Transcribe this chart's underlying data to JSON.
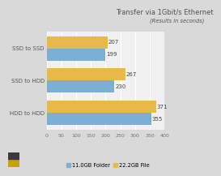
{
  "title": "Transfer via 1Gbit/s Ethernet",
  "subtitle": "(Results in seconds)",
  "categories": [
    "SSD to SSD",
    "SSD to HDD",
    "HDD to HDD"
  ],
  "series": [
    {
      "label": "11.0GB Folder",
      "values": [
        199,
        230,
        355
      ],
      "color": "#7BAFD4"
    },
    {
      "label": "22.2GB File",
      "values": [
        207,
        267,
        371
      ],
      "color": "#E8B84B"
    }
  ],
  "xlim": [
    0,
    400
  ],
  "xticks": [
    0,
    50,
    100,
    150,
    200,
    250,
    300,
    350,
    400
  ],
  "background_color": "#d9d9d9",
  "plot_bg_color": "#f0f0f0",
  "title_color": "#555555",
  "bar_height": 0.38,
  "value_fontsize": 5.0,
  "tick_fontsize": 4.5,
  "label_fontsize": 5.0,
  "legend_fontsize": 4.8
}
